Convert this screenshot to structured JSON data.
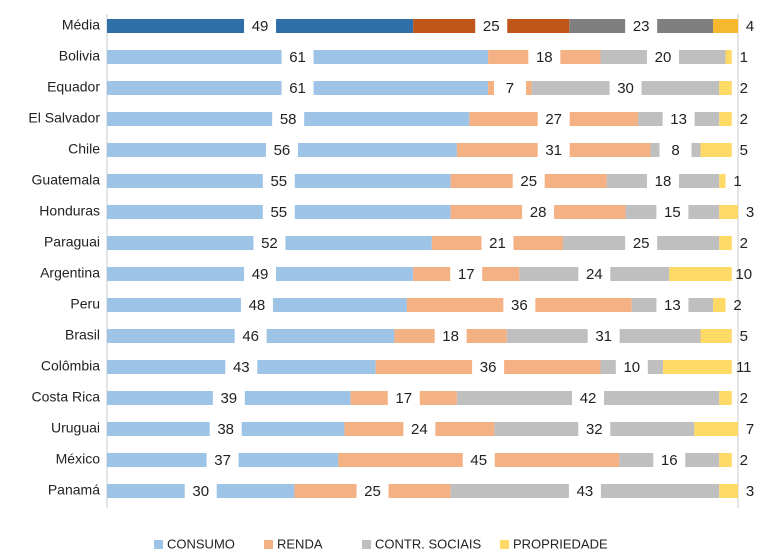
{
  "chart_data": {
    "type": "stacked_bar_horizontal",
    "categories": [
      "Média",
      "Bolivia",
      "Equador",
      "El Salvador",
      "Chile",
      "Guatemala",
      "Honduras",
      "Paraguai",
      "Argentina",
      "Peru",
      "Brasil",
      "Colômbia",
      "Costa Rica",
      "Uruguai",
      "México",
      "Panamá"
    ],
    "series": [
      {
        "name": "CONSUMO",
        "color": "#9dc3e6",
        "highlight_color": "#2e6faa",
        "values": [
          49,
          61,
          61,
          58,
          56,
          55,
          55,
          52,
          49,
          48,
          46,
          43,
          39,
          38,
          37,
          30
        ]
      },
      {
        "name": "RENDA",
        "color": "#f4b183",
        "highlight_color": "#c0561a",
        "values": [
          25,
          18,
          7,
          27,
          31,
          25,
          28,
          21,
          17,
          36,
          18,
          36,
          17,
          24,
          45,
          25
        ]
      },
      {
        "name": "CONTR. SOCIAIS",
        "color": "#bfbfbf",
        "highlight_color": "#7f7f7f",
        "values": [
          23,
          20,
          30,
          13,
          8,
          18,
          15,
          25,
          24,
          13,
          31,
          10,
          42,
          32,
          16,
          43
        ]
      },
      {
        "name": "PROPRIEDADE",
        "color": "#ffd966",
        "highlight_color": "#f5b82e",
        "values": [
          4,
          1,
          2,
          2,
          5,
          1,
          3,
          2,
          10,
          2,
          5,
          11,
          2,
          7,
          2,
          3
        ]
      }
    ],
    "highlight_category_index": 0,
    "xlim": [
      0,
      101
    ],
    "legend": "bottom"
  }
}
